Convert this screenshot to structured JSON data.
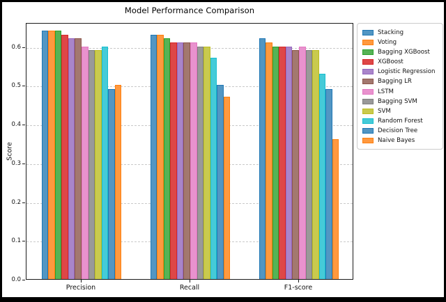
{
  "figure": {
    "background": "#ffffff",
    "frame_color": "#000000"
  },
  "chart_data": {
    "type": "bar",
    "title": "Model Performance Comparison",
    "xlabel": "",
    "ylabel": "Score",
    "categories": [
      "Precision",
      "Recall",
      "F1-score"
    ],
    "yticks": [
      "0.0",
      "0.1",
      "0.2",
      "0.3",
      "0.4",
      "0.5",
      "0.6"
    ],
    "ylim": [
      0,
      0.662
    ],
    "grid": "horizontal-dashed",
    "grid_color": "#c9c9c9",
    "legend_position": "outside-right",
    "series": [
      {
        "name": "Stacking",
        "fill": "#5296c3",
        "edge": "#1f77b4",
        "values": [
          0.64,
          0.63,
          0.62
        ]
      },
      {
        "name": "Voting",
        "fill": "#ff993f",
        "edge": "#ff7f0e",
        "values": [
          0.64,
          0.63,
          0.61
        ]
      },
      {
        "name": "Bagging XGBoost",
        "fill": "#56b356",
        "edge": "#2ca02c",
        "values": [
          0.64,
          0.62,
          0.6
        ]
      },
      {
        "name": "XGBoost",
        "fill": "#de4747",
        "edge": "#d62728",
        "values": [
          0.63,
          0.61,
          0.6
        ]
      },
      {
        "name": "Logistic Regression",
        "fill": "#a985ca",
        "edge": "#9467bd",
        "values": [
          0.62,
          0.61,
          0.6
        ]
      },
      {
        "name": "Bagging LR",
        "fill": "#a3786f",
        "edge": "#8c564b",
        "values": [
          0.62,
          0.61,
          0.59
        ]
      },
      {
        "name": "LSTM",
        "fill": "#e992ce",
        "edge": "#e377c2",
        "values": [
          0.6,
          0.61,
          0.6
        ]
      },
      {
        "name": "Bagging SVM",
        "fill": "#999999",
        "edge": "#7f7f7f",
        "values": [
          0.59,
          0.6,
          0.59
        ]
      },
      {
        "name": "SVM",
        "fill": "#c9ca4e",
        "edge": "#bcbd22",
        "values": [
          0.59,
          0.6,
          0.59
        ]
      },
      {
        "name": "Random Forest",
        "fill": "#45cbd8",
        "edge": "#17becf",
        "values": [
          0.6,
          0.57,
          0.53
        ]
      },
      {
        "name": "Decision Tree",
        "fill": "#5296c3",
        "edge": "#1f77b4",
        "values": [
          0.49,
          0.5,
          0.49
        ]
      },
      {
        "name": "Naive Bayes",
        "fill": "#ff993f",
        "edge": "#ff7f0e",
        "values": [
          0.5,
          0.47,
          0.36
        ]
      }
    ]
  }
}
